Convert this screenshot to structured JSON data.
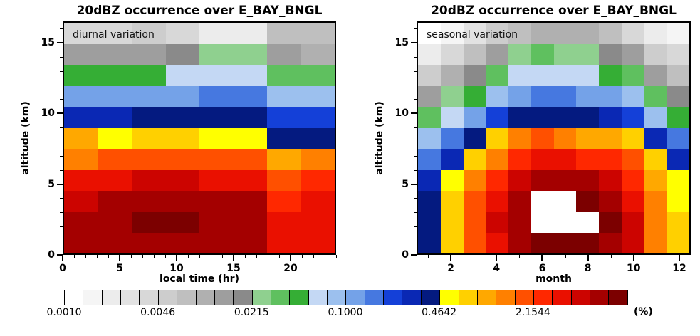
{
  "chart_data": [
    {
      "type": "heatmap",
      "title": "20dBZ occurrence over E_BAY_BNGL",
      "annotation": "diurnal variation",
      "xlabel": "local time (hr)",
      "ylabel": "altitude (km)",
      "xlim": [
        0,
        24
      ],
      "ylim": [
        0,
        16.5
      ],
      "x_ticks": [
        0,
        5,
        10,
        15,
        20
      ],
      "x_minor_ticks": [
        1,
        2,
        3,
        4,
        6,
        7,
        8,
        9,
        11,
        12,
        13,
        14,
        16,
        17,
        18,
        19,
        21,
        22,
        23,
        24
      ],
      "y_ticks": [
        0,
        5,
        10,
        15
      ],
      "y_minor_ticks": [
        1,
        2,
        3,
        4,
        6,
        7,
        8,
        9,
        11,
        12,
        13,
        14,
        16
      ],
      "x_bin_edges": [
        0,
        3,
        6,
        9,
        12,
        15,
        18,
        21,
        24
      ],
      "altitude_bin_edges_km": [
        0,
        1.5,
        3,
        4.5,
        6,
        7.5,
        9,
        10.5,
        12,
        13.5,
        15,
        16.5
      ],
      "values_percent_rows_bottom_to_top": [
        [
          6.0,
          6.5,
          7.0,
          7.0,
          6.5,
          6.0,
          3.0,
          3.5
        ],
        [
          6.0,
          7.0,
          7.5,
          7.5,
          7.0,
          6.5,
          3.0,
          3.5
        ],
        [
          5.0,
          6.0,
          7.0,
          7.0,
          6.5,
          6.0,
          2.6,
          3.0
        ],
        [
          3.0,
          3.5,
          4.0,
          4.0,
          3.8,
          3.5,
          1.8,
          2.2
        ],
        [
          1.4,
          1.6,
          1.8,
          1.8,
          1.7,
          1.6,
          1.0,
          1.2
        ],
        [
          0.95,
          0.62,
          0.65,
          0.65,
          0.62,
          0.6,
          0.36,
          0.42
        ],
        [
          0.3,
          0.33,
          0.35,
          0.35,
          0.38,
          0.38,
          0.2,
          0.22
        ],
        [
          0.1,
          0.11,
          0.12,
          0.12,
          0.14,
          0.14,
          0.08,
          0.09
        ],
        [
          0.04,
          0.042,
          0.045,
          0.06,
          0.07,
          0.065,
          0.03,
          0.032
        ],
        [
          0.013,
          0.013,
          0.015,
          0.017,
          0.028,
          0.024,
          0.012,
          0.011
        ],
        [
          0.004,
          0.0045,
          0.005,
          0.0035,
          0.002,
          0.0025,
          0.008,
          0.0075
        ]
      ]
    },
    {
      "type": "heatmap",
      "title": "20dBZ occurrence over E_BAY_BNGL",
      "annotation": "seasonal variation",
      "xlabel": "month",
      "ylabel": "altitude (km)",
      "xlim": [
        0.5,
        12.5
      ],
      "ylim": [
        0,
        16.5
      ],
      "x_ticks": [
        2,
        4,
        6,
        8,
        10,
        12
      ],
      "x_minor_ticks": [
        1,
        3,
        5,
        7,
        9,
        11
      ],
      "y_ticks": [
        0,
        5,
        10,
        15
      ],
      "y_minor_ticks": [
        1,
        2,
        3,
        4,
        6,
        7,
        8,
        9,
        11,
        12,
        13,
        14,
        16
      ],
      "x_bin_edges": [
        0.5,
        1.5,
        2.5,
        3.5,
        4.5,
        5.5,
        6.5,
        7.5,
        8.5,
        9.5,
        10.5,
        11.5,
        12.5
      ],
      "altitude_bin_edges_km": [
        0,
        1.5,
        3,
        4.5,
        6,
        7.5,
        9,
        10.5,
        12,
        13.5,
        15,
        16.5
      ],
      "values_percent_rows_bottom_to_top": [
        [
          0.35,
          0.7,
          1.6,
          3.0,
          6.0,
          8.0,
          8.5,
          8.0,
          6.5,
          4.0,
          1.3,
          0.65
        ],
        [
          0.4,
          0.8,
          2.0,
          4.0,
          7.0,
          11,
          11,
          11,
          7.5,
          4.5,
          1.5,
          0.7
        ],
        [
          0.35,
          0.7,
          1.8,
          3.5,
          6.0,
          11,
          11,
          8.0,
          6.0,
          3.5,
          1.2,
          0.6
        ],
        [
          0.28,
          0.5,
          1.2,
          2.5,
          4.5,
          6.5,
          6.0,
          5.5,
          4.5,
          2.8,
          0.9,
          0.5
        ],
        [
          0.18,
          0.32,
          0.7,
          1.5,
          2.8,
          3.8,
          3.2,
          2.8,
          2.6,
          1.8,
          0.65,
          0.32
        ],
        [
          0.09,
          0.16,
          0.35,
          0.7,
          1.3,
          1.7,
          1.4,
          1.1,
          1.1,
          0.7,
          0.32,
          0.14
        ],
        [
          0.035,
          0.06,
          0.12,
          0.25,
          0.38,
          0.45,
          0.4,
          0.35,
          0.33,
          0.22,
          0.09,
          0.05
        ],
        [
          0.014,
          0.025,
          0.05,
          0.09,
          0.13,
          0.17,
          0.14,
          0.13,
          0.11,
          0.08,
          0.035,
          0.018
        ],
        [
          0.006,
          0.01,
          0.02,
          0.035,
          0.055,
          0.07,
          0.06,
          0.055,
          0.045,
          0.032,
          0.014,
          0.008
        ],
        [
          0.0025,
          0.004,
          0.008,
          0.014,
          0.024,
          0.03,
          0.026,
          0.024,
          0.02,
          0.013,
          0.006,
          0.0035
        ],
        [
          0.0012,
          0.0016,
          0.003,
          0.005,
          0.008,
          0.011,
          0.01,
          0.009,
          0.007,
          0.0045,
          0.002,
          0.0014
        ]
      ]
    }
  ],
  "colorbar": {
    "scale": "log10",
    "vmin": 0.001,
    "vmax": 10,
    "unit": "(%)",
    "tick_labels": [
      "0.0010",
      "0.0046",
      "0.0215",
      "0.1000",
      "0.4642",
      "2.1544"
    ],
    "tick_boundary_indices": [
      0,
      5,
      10,
      15,
      20,
      25
    ],
    "over_range_color": "#ffffff",
    "palette": [
      "#ffffff",
      "#f5f5f5",
      "#ececec",
      "#e2e2e2",
      "#d8d8d8",
      "#cdcdcd",
      "#bfbfbf",
      "#b0b0b0",
      "#9e9e9e",
      "#8a8a8a",
      "#8fd08f",
      "#5fc05f",
      "#35ae35",
      "#c4d8f4",
      "#9cc0ee",
      "#74a2e8",
      "#4678e0",
      "#1440d8",
      "#0a28b4",
      "#041a80",
      "#ffff00",
      "#ffd000",
      "#ffa800",
      "#ff8000",
      "#ff5000",
      "#ff2800",
      "#ea1000",
      "#cc0400",
      "#a40000",
      "#7c0000"
    ]
  }
}
